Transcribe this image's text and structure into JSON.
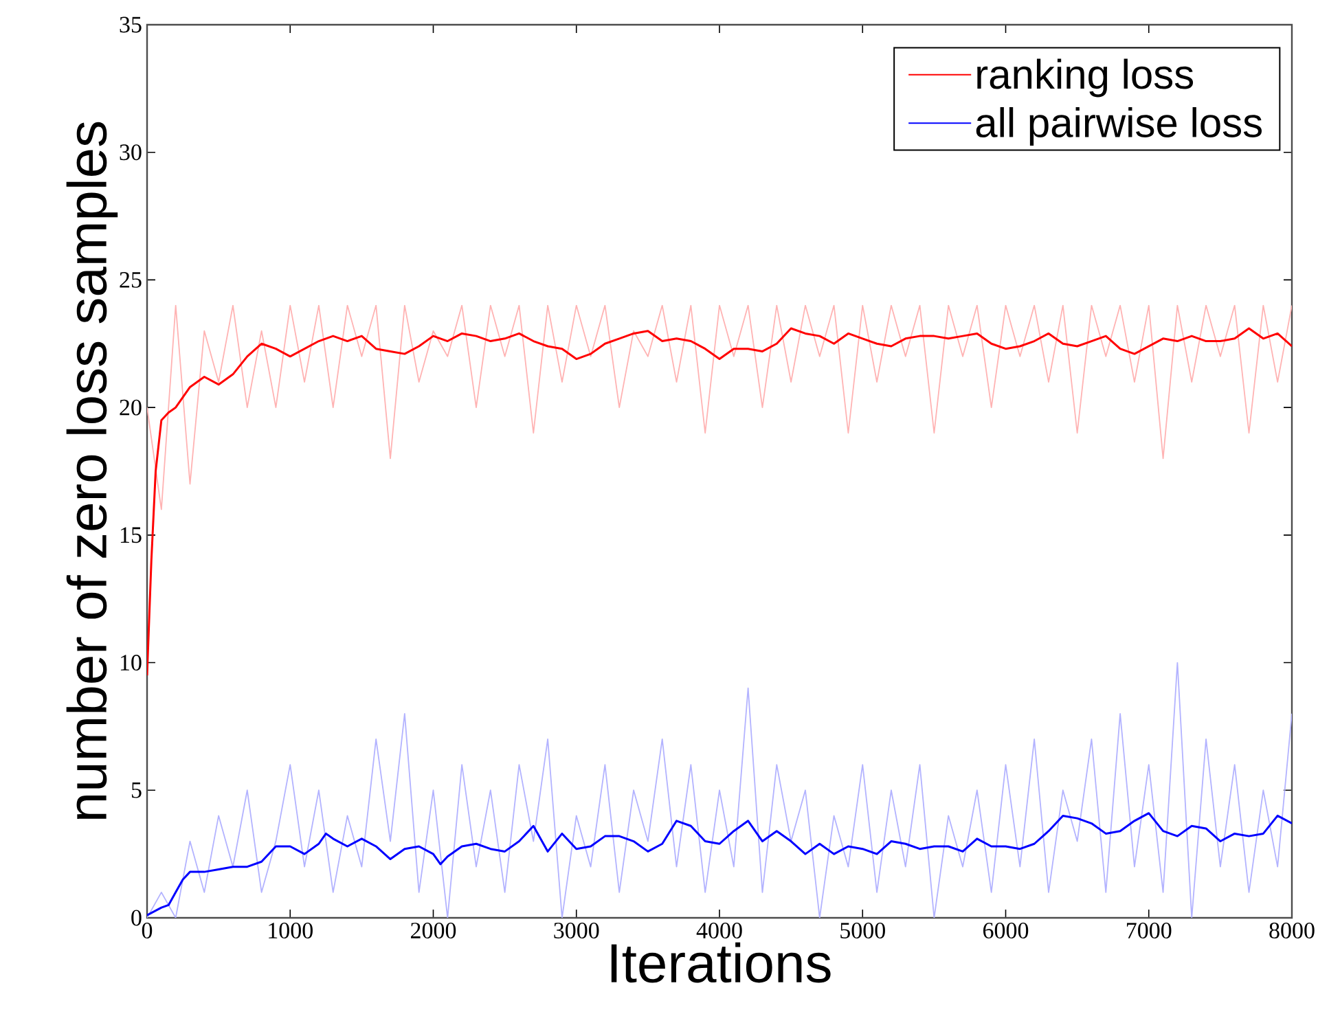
{
  "chart_data": {
    "type": "line",
    "xlabel": "Iterations",
    "ylabel": "number of zero loss samples",
    "xlim": [
      0,
      8000
    ],
    "ylim": [
      0,
      35
    ],
    "xticks": [
      0,
      1000,
      2000,
      3000,
      4000,
      5000,
      6000,
      7000,
      8000
    ],
    "yticks": [
      0,
      5,
      10,
      15,
      20,
      25,
      30,
      35
    ],
    "legend": "top right",
    "series": [
      {
        "color": "#ffb3b3",
        "x": [
          0,
          100,
          200,
          300,
          400,
          500,
          600,
          700,
          800,
          900,
          1000,
          1100,
          1200,
          1300,
          1400,
          1500,
          1600,
          1700,
          1800,
          1900,
          2000,
          2100,
          2200,
          2300,
          2400,
          2500,
          2600,
          2700,
          2800,
          2900,
          3000,
          3100,
          3200,
          3300,
          3400,
          3500,
          3600,
          3700,
          3800,
          3900,
          4000,
          4100,
          4200,
          4300,
          4400,
          4500,
          4600,
          4700,
          4800,
          4900,
          5000,
          5100,
          5200,
          5300,
          5400,
          5500,
          5600,
          5700,
          5800,
          5900,
          6000,
          6100,
          6200,
          6300,
          6400,
          6500,
          6600,
          6700,
          6800,
          6900,
          7000,
          7100,
          7200,
          7300,
          7400,
          7500,
          7600,
          7700,
          7800,
          7900,
          8000
        ],
        "values": [
          20,
          16,
          24,
          17,
          23,
          21,
          24,
          20,
          23,
          20,
          24,
          21,
          24,
          20,
          24,
          22,
          24,
          18,
          24,
          21,
          23,
          22,
          24,
          20,
          24,
          22,
          24,
          19,
          24,
          21,
          24,
          22,
          24,
          20,
          23,
          22,
          24,
          21,
          24,
          19,
          24,
          22,
          24,
          20,
          24,
          21,
          24,
          22,
          24,
          19,
          24,
          21,
          24,
          22,
          24,
          19,
          24,
          22,
          24,
          20,
          24,
          22,
          24,
          21,
          24,
          19,
          24,
          22,
          24,
          21,
          24,
          18,
          24,
          21,
          24,
          22,
          24,
          19,
          24,
          21,
          24
        ]
      },
      {
        "color": "#b3b3ff",
        "x": [
          0,
          100,
          200,
          300,
          400,
          500,
          600,
          700,
          800,
          900,
          1000,
          1100,
          1200,
          1300,
          1400,
          1500,
          1600,
          1700,
          1800,
          1900,
          2000,
          2100,
          2200,
          2300,
          2400,
          2500,
          2600,
          2700,
          2800,
          2900,
          3000,
          3100,
          3200,
          3300,
          3400,
          3500,
          3600,
          3700,
          3800,
          3900,
          4000,
          4100,
          4200,
          4300,
          4400,
          4500,
          4600,
          4700,
          4800,
          4900,
          5000,
          5100,
          5200,
          5300,
          5400,
          5500,
          5600,
          5700,
          5800,
          5900,
          6000,
          6100,
          6200,
          6300,
          6400,
          6500,
          6600,
          6700,
          6800,
          6900,
          7000,
          7100,
          7200,
          7300,
          7400,
          7500,
          7600,
          7700,
          7800,
          7900,
          8000
        ],
        "values": [
          0,
          1,
          0,
          3,
          1,
          4,
          2,
          5,
          1,
          3,
          6,
          2,
          5,
          1,
          4,
          2,
          7,
          3,
          8,
          1,
          5,
          0,
          6,
          2,
          5,
          1,
          6,
          3,
          7,
          0,
          4,
          2,
          6,
          1,
          5,
          3,
          7,
          2,
          6,
          1,
          5,
          2,
          9,
          1,
          6,
          3,
          5,
          0,
          4,
          2,
          6,
          1,
          5,
          2,
          6,
          0,
          4,
          2,
          5,
          1,
          6,
          2,
          7,
          1,
          5,
          3,
          7,
          1,
          8,
          2,
          6,
          1,
          10,
          0,
          7,
          2,
          6,
          1,
          5,
          2,
          8
        ]
      },
      {
        "name": "ranking loss",
        "color": "#ff0000",
        "x": [
          0,
          30,
          60,
          100,
          150,
          200,
          300,
          400,
          500,
          600,
          700,
          800,
          900,
          1000,
          1100,
          1200,
          1300,
          1400,
          1500,
          1600,
          1700,
          1800,
          1900,
          2000,
          2100,
          2200,
          2300,
          2400,
          2500,
          2600,
          2700,
          2800,
          2900,
          3000,
          3100,
          3200,
          3300,
          3400,
          3500,
          3600,
          3700,
          3800,
          3900,
          4000,
          4100,
          4200,
          4300,
          4400,
          4500,
          4600,
          4700,
          4800,
          4900,
          5000,
          5100,
          5200,
          5300,
          5400,
          5500,
          5600,
          5700,
          5800,
          5900,
          6000,
          6100,
          6200,
          6300,
          6400,
          6500,
          6600,
          6700,
          6800,
          6900,
          7000,
          7100,
          7200,
          7300,
          7400,
          7500,
          7600,
          7700,
          7800,
          7900,
          8000
        ],
        "values": [
          9.5,
          14,
          17.5,
          19.5,
          19.8,
          20,
          20.8,
          21.2,
          20.9,
          21.3,
          22.0,
          22.5,
          22.3,
          22.0,
          22.3,
          22.6,
          22.8,
          22.6,
          22.8,
          22.3,
          22.2,
          22.1,
          22.4,
          22.8,
          22.6,
          22.9,
          22.8,
          22.6,
          22.7,
          22.9,
          22.6,
          22.4,
          22.3,
          21.9,
          22.1,
          22.5,
          22.7,
          22.9,
          23.0,
          22.6,
          22.7,
          22.6,
          22.3,
          21.9,
          22.3,
          22.3,
          22.2,
          22.5,
          23.1,
          22.9,
          22.8,
          22.5,
          22.9,
          22.7,
          22.5,
          22.4,
          22.7,
          22.8,
          22.8,
          22.7,
          22.8,
          22.9,
          22.5,
          22.3,
          22.4,
          22.6,
          22.9,
          22.5,
          22.4,
          22.6,
          22.8,
          22.3,
          22.1,
          22.4,
          22.7,
          22.6,
          22.8,
          22.6,
          22.6,
          22.7,
          23.1,
          22.7,
          22.9,
          22.4
        ]
      },
      {
        "name": "all pairwise loss",
        "color": "#0000ff",
        "x": [
          0,
          100,
          150,
          200,
          250,
          300,
          400,
          500,
          600,
          700,
          800,
          900,
          1000,
          1100,
          1200,
          1250,
          1300,
          1400,
          1500,
          1600,
          1700,
          1800,
          1900,
          2000,
          2050,
          2100,
          2200,
          2300,
          2400,
          2500,
          2600,
          2700,
          2800,
          2900,
          3000,
          3100,
          3200,
          3300,
          3400,
          3500,
          3600,
          3700,
          3800,
          3900,
          4000,
          4100,
          4200,
          4300,
          4400,
          4500,
          4600,
          4700,
          4800,
          4900,
          5000,
          5100,
          5200,
          5300,
          5400,
          5500,
          5600,
          5700,
          5800,
          5900,
          6000,
          6100,
          6200,
          6300,
          6400,
          6500,
          6600,
          6700,
          6800,
          6900,
          7000,
          7100,
          7200,
          7300,
          7400,
          7500,
          7600,
          7700,
          7800,
          7900,
          8000
        ],
        "values": [
          0.1,
          0.4,
          0.5,
          1.0,
          1.5,
          1.8,
          1.8,
          1.9,
          2.0,
          2.0,
          2.2,
          2.8,
          2.8,
          2.5,
          2.9,
          3.3,
          3.1,
          2.8,
          3.1,
          2.8,
          2.3,
          2.7,
          2.8,
          2.5,
          2.1,
          2.4,
          2.8,
          2.9,
          2.7,
          2.6,
          3.0,
          3.6,
          2.6,
          3.3,
          2.7,
          2.8,
          3.2,
          3.2,
          3.0,
          2.6,
          2.9,
          3.8,
          3.6,
          3.0,
          2.9,
          3.4,
          3.8,
          3.0,
          3.4,
          3.0,
          2.5,
          2.9,
          2.5,
          2.8,
          2.7,
          2.5,
          3.0,
          2.9,
          2.7,
          2.8,
          2.8,
          2.6,
          3.1,
          2.8,
          2.8,
          2.7,
          2.9,
          3.4,
          4.0,
          3.9,
          3.7,
          3.3,
          3.4,
          3.8,
          4.1,
          3.4,
          3.2,
          3.6,
          3.5,
          3.0,
          3.3,
          3.2,
          3.3,
          4.0,
          3.7
        ]
      }
    ]
  }
}
